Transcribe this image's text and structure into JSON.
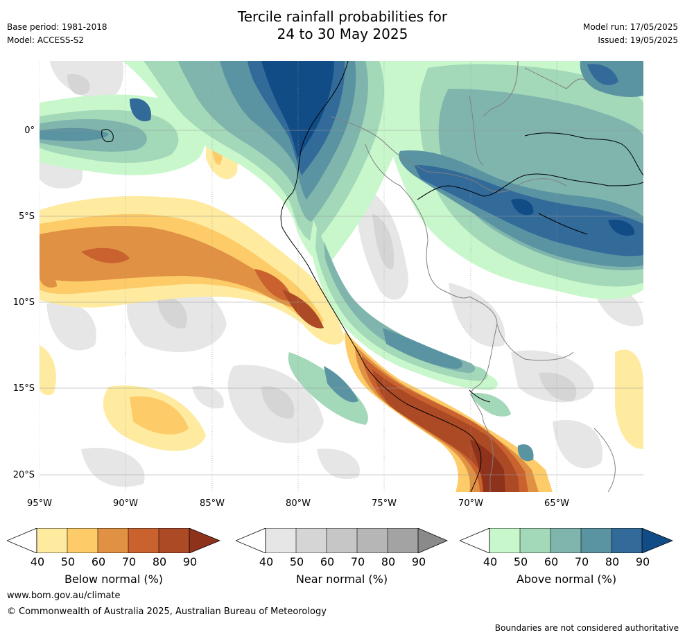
{
  "header": {
    "title_line1": "Tercile rainfall probabilities for",
    "title_line2": "24 to 30 May 2025",
    "base_period": "Base period: 1981-2018",
    "model": "Model: ACCESS-S2",
    "model_run": "Model run: 17/05/2025",
    "issued": "Issued: 19/05/2025"
  },
  "map": {
    "lat_labels": [
      "0°",
      "5°S",
      "10°S",
      "15°S",
      "20°S"
    ],
    "lon_labels": [
      "95°W",
      "90°W",
      "85°W",
      "80°W",
      "75°W",
      "70°W",
      "65°W"
    ]
  },
  "legend": {
    "ticks": [
      "40",
      "50",
      "60",
      "70",
      "80",
      "90"
    ],
    "below": {
      "label": "Below normal (%)",
      "colors": [
        "#ffffff",
        "#feeba0",
        "#fdcb68",
        "#e09143",
        "#c9622f",
        "#ad4a26",
        "#8e321c"
      ]
    },
    "near": {
      "label": "Near normal (%)",
      "colors": [
        "#ffffff",
        "#e6e6e6",
        "#d5d5d5",
        "#c6c6c6",
        "#b6b6b6",
        "#a3a3a3",
        "#8a8a8a"
      ]
    },
    "above": {
      "label": "Above normal (%)",
      "colors": [
        "#ffffff",
        "#c8f7cc",
        "#a3d8b8",
        "#7fb5ad",
        "#5a93a1",
        "#326a99",
        "#124c86"
      ]
    }
  },
  "footer": {
    "url": "www.bom.gov.au/climate",
    "copyright": "© Commonwealth of Australia 2025, Australian Bureau of Meteorology",
    "disclaimer": "Boundaries are not considered authoritative"
  }
}
